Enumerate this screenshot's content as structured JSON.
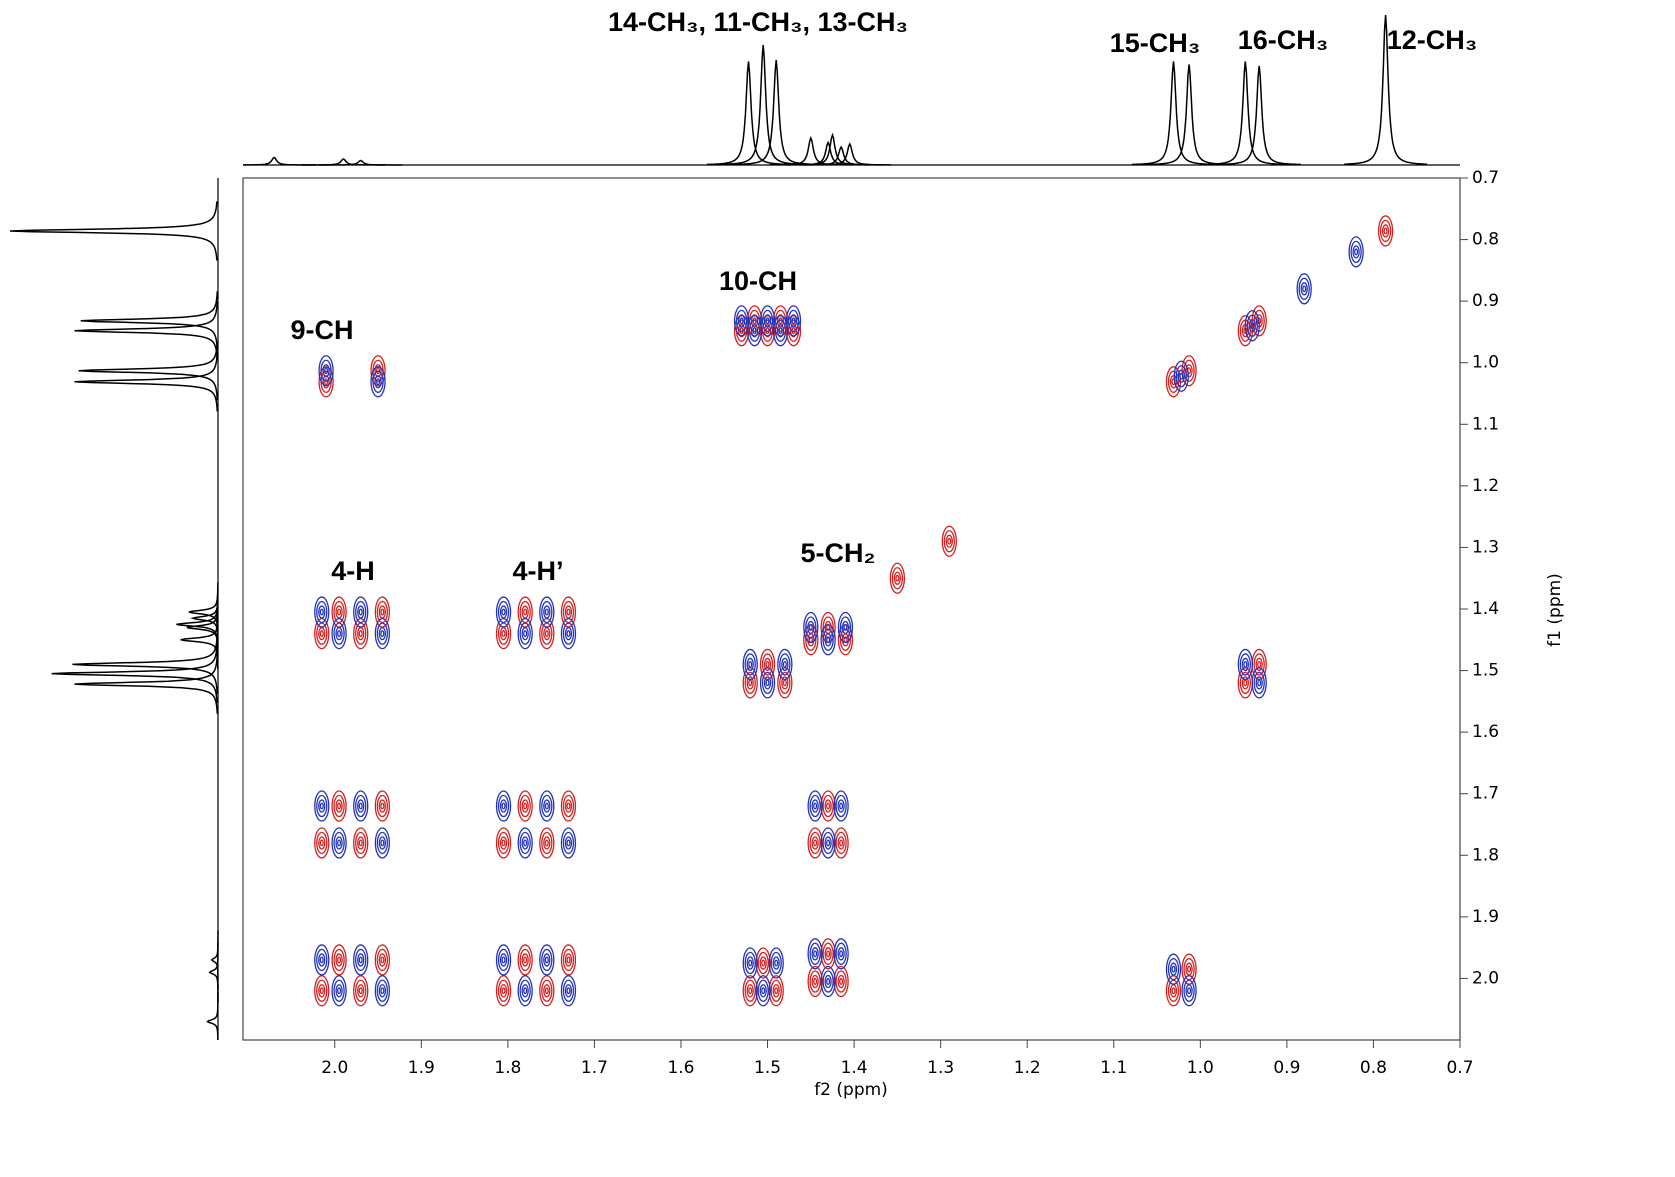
{
  "chart_data": {
    "type": "cosy",
    "xlabel": "f2 (ppm)",
    "ylabel": "f1 (ppm)",
    "xlim": [
      2.106,
      0.7
    ],
    "ylim": [
      0.7,
      2.1
    ],
    "xticks": [
      {
        "value": 2,
        "label": "2.0"
      },
      1.9,
      1.8,
      1.7,
      1.6,
      1.5,
      1.4,
      1.3,
      1.2,
      1.1,
      {
        "value": 1,
        "label": "1.0"
      },
      0.9,
      0.8,
      0.7
    ],
    "yticks": [
      0.7,
      0.8,
      0.9,
      {
        "value": 1,
        "label": "1.0"
      },
      1.1,
      1.2,
      1.3,
      1.4,
      1.5,
      1.6,
      1.7,
      1.8,
      1.9,
      {
        "value": 2,
        "label": "2.0"
      }
    ],
    "annotations": [
      "14-CH₃, 11-CH₃, 13-CH₃",
      "15-CH₃",
      "16-CH₃",
      "12-CH₃",
      "10-CH",
      "9-CH",
      "4-H",
      "4-H’",
      "5-CH₂"
    ],
    "projection": {
      "color": "#000000",
      "x": [
        2.07,
        1.99,
        1.97,
        1.522,
        1.505,
        1.49,
        1.45,
        1.43,
        1.425,
        1.415,
        1.405,
        1.031,
        1.013,
        0.948,
        0.932,
        0.786
      ],
      "values": [
        5,
        4,
        3,
        69,
        80,
        70,
        18,
        15,
        20,
        12,
        14,
        69,
        67,
        69,
        66,
        100
      ]
    },
    "series": [
      {
        "color": "#d42020",
        "x": [
          1.95,
          2.01,
          1.515,
          1.485,
          1.53,
          1.5,
          1.47,
          1.995,
          1.945,
          2.015,
          1.97,
          1.78,
          1.73,
          1.805,
          1.755,
          1.43,
          1.45,
          1.41,
          1.5,
          1.52,
          1.48,
          0.932,
          0.948,
          1.995,
          1.945,
          2.015,
          1.97,
          1.78,
          1.73,
          1.805,
          1.755,
          1.43,
          1.445,
          1.415,
          1.995,
          1.945,
          2.015,
          1.97,
          1.78,
          1.73,
          1.805,
          1.755,
          1.505,
          1.52,
          1.49,
          1.43,
          1.445,
          1.415,
          1.013,
          1.031,
          1.031,
          1.013,
          0.948,
          0.932,
          0.786,
          1.29,
          1.35
        ],
        "y": [
          1.013,
          1.031,
          0.932,
          0.932,
          0.948,
          0.948,
          0.948,
          1.405,
          1.405,
          1.44,
          1.44,
          1.405,
          1.405,
          1.44,
          1.44,
          1.43,
          1.45,
          1.45,
          1.49,
          1.52,
          1.52,
          1.49,
          1.52,
          1.72,
          1.72,
          1.78,
          1.78,
          1.72,
          1.72,
          1.78,
          1.78,
          1.72,
          1.78,
          1.78,
          1.97,
          1.97,
          2.02,
          2.02,
          1.97,
          1.97,
          2.02,
          2.02,
          1.975,
          2.02,
          2.02,
          1.96,
          2.005,
          2.005,
          1.985,
          2.02,
          1.031,
          1.013,
          0.948,
          0.932,
          0.786,
          1.29,
          1.35
        ]
      },
      {
        "color": "#2233bb",
        "x": [
          2.01,
          1.95,
          1.53,
          1.5,
          1.47,
          1.515,
          1.485,
          2.015,
          1.97,
          1.995,
          1.945,
          1.805,
          1.755,
          1.78,
          1.73,
          1.45,
          1.41,
          1.43,
          1.52,
          1.48,
          1.5,
          0.948,
          0.932,
          2.015,
          1.97,
          1.995,
          1.945,
          1.805,
          1.755,
          1.78,
          1.73,
          1.445,
          1.415,
          1.43,
          2.015,
          1.97,
          1.995,
          1.945,
          1.805,
          1.755,
          1.78,
          1.73,
          1.52,
          1.49,
          1.505,
          1.445,
          1.415,
          1.43,
          1.031,
          1.013,
          1.022,
          0.94,
          0.88,
          0.82
        ],
        "y": [
          1.013,
          1.031,
          0.932,
          0.932,
          0.932,
          0.948,
          0.948,
          1.405,
          1.405,
          1.44,
          1.44,
          1.405,
          1.405,
          1.44,
          1.44,
          1.43,
          1.43,
          1.45,
          1.49,
          1.49,
          1.52,
          1.49,
          1.52,
          1.72,
          1.72,
          1.78,
          1.78,
          1.72,
          1.72,
          1.78,
          1.78,
          1.72,
          1.72,
          1.78,
          1.97,
          1.97,
          2.02,
          2.02,
          1.97,
          1.97,
          2.02,
          2.02,
          1.975,
          1.975,
          2.02,
          1.96,
          1.96,
          2.005,
          1.985,
          2.02,
          1.022,
          0.94,
          0.88,
          0.82
        ]
      }
    ]
  }
}
